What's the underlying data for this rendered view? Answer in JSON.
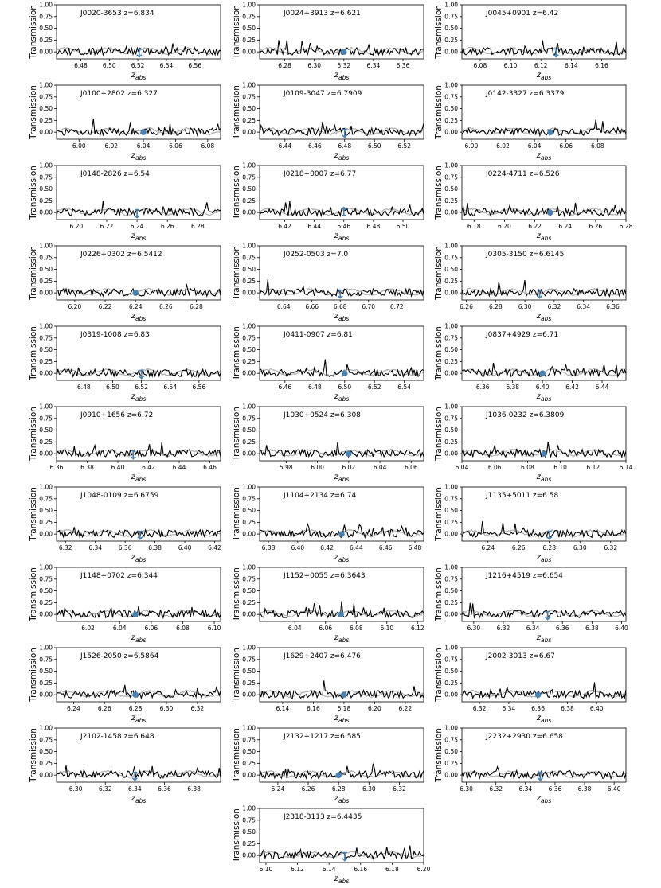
{
  "figure": {
    "ylabel": "Transmission",
    "xlabel_main": "z",
    "xlabel_sub": "abs",
    "yticks": [
      "0.00",
      "0.25",
      "0.50",
      "0.75",
      "1.00"
    ],
    "colors": {
      "flux": "#000000",
      "model": "#b0b0b0",
      "marker": "#4682b4"
    }
  },
  "chart_data": [
    {
      "type": "line",
      "title": "J0020-3653 z=6.834",
      "xlim": [
        6.463,
        6.578
      ],
      "ylim": [
        -0.15,
        1.0
      ],
      "xticks": [
        "6.48",
        "6.50",
        "6.52",
        "6.54",
        "6.56"
      ],
      "marker": {
        "x": 6.521,
        "kind": "upper-limit"
      }
    },
    {
      "type": "line",
      "title": "J0024+3913 z=6.621",
      "xlim": [
        6.263,
        6.374
      ],
      "ylim": [
        -0.15,
        1.0
      ],
      "xticks": [
        "6.28",
        "6.30",
        "6.32",
        "6.34",
        "6.36"
      ],
      "marker": {
        "x": 6.32,
        "kind": "point"
      }
    },
    {
      "type": "line",
      "title": "J0045+0901 z=6.42",
      "xlim": [
        6.068,
        6.176
      ],
      "ylim": [
        -0.15,
        1.0
      ],
      "xticks": [
        "6.08",
        "6.10",
        "6.12",
        "6.14",
        "6.16"
      ],
      "marker": {
        "x": 6.13,
        "kind": "upper-limit"
      }
    },
    {
      "type": "line",
      "title": "J0100+2802 z=6.327",
      "xlim": [
        5.986,
        6.088
      ],
      "ylim": [
        -0.15,
        1.0
      ],
      "xticks": [
        "6.00",
        "6.02",
        "6.04",
        "6.06",
        "6.08"
      ],
      "marker": {
        "x": 6.04,
        "kind": "point"
      }
    },
    {
      "type": "line",
      "title": "J0109-3047 z=6.7909",
      "xlim": [
        6.423,
        6.533
      ],
      "ylim": [
        -0.15,
        1.0
      ],
      "xticks": [
        "6.44",
        "6.46",
        "6.48",
        "6.50",
        "6.52"
      ],
      "marker": {
        "x": 6.48,
        "kind": "upper-limit"
      }
    },
    {
      "type": "line",
      "title": "J0142-3327 z=6.3379",
      "xlim": [
        5.994,
        6.098
      ],
      "ylim": [
        -0.15,
        1.0
      ],
      "xticks": [
        "6.00",
        "6.02",
        "6.04",
        "6.06",
        "6.08"
      ],
      "marker": {
        "x": 6.05,
        "kind": "point"
      }
    },
    {
      "type": "line",
      "title": "J0148-2826 z=6.54",
      "xlim": [
        6.187,
        6.295
      ],
      "ylim": [
        -0.15,
        1.0
      ],
      "xticks": [
        "6.20",
        "6.22",
        "6.24",
        "6.26",
        "6.28"
      ],
      "marker": {
        "x": 6.24,
        "kind": "upper-limit"
      }
    },
    {
      "type": "line",
      "title": "J0218+0007 z=6.77",
      "xlim": [
        6.403,
        6.514
      ],
      "ylim": [
        -0.15,
        1.0
      ],
      "xticks": [
        "6.42",
        "6.44",
        "6.46",
        "6.48",
        "6.50"
      ],
      "marker": {
        "x": 6.46,
        "kind": "lower-limit"
      }
    },
    {
      "type": "line",
      "title": "J0224-4711 z=6.526",
      "xlim": [
        6.172,
        6.28
      ],
      "ylim": [
        -0.15,
        1.0
      ],
      "xticks": [
        "6.18",
        "6.20",
        "6.22",
        "6.24",
        "6.26",
        "6.28"
      ],
      "marker": {
        "x": 6.23,
        "kind": "point"
      }
    },
    {
      "type": "line",
      "title": "J0226+0302 z=6.5412",
      "xlim": [
        6.188,
        6.296
      ],
      "ylim": [
        -0.15,
        1.0
      ],
      "xticks": [
        "6.20",
        "6.22",
        "6.24",
        "6.26",
        "6.28"
      ],
      "marker": {
        "x": 6.24,
        "kind": "point"
      }
    },
    {
      "type": "line",
      "title": "J0252-0503 z=7.0",
      "xlim": [
        6.623,
        6.739
      ],
      "ylim": [
        -0.15,
        1.0
      ],
      "xticks": [
        "6.64",
        "6.66",
        "6.68",
        "6.70",
        "6.72"
      ],
      "marker": {
        "x": 6.68,
        "kind": "upper-limit"
      }
    },
    {
      "type": "line",
      "title": "J0305-3150 z=6.6145",
      "xlim": [
        6.257,
        6.369
      ],
      "ylim": [
        -0.15,
        1.0
      ],
      "xticks": [
        "6.26",
        "6.28",
        "6.30",
        "6.32",
        "6.34",
        "6.36"
      ],
      "marker": {
        "x": 6.31,
        "kind": "upper-limit"
      }
    },
    {
      "type": "line",
      "title": "J0319-1008 z=6.83",
      "xlim": [
        6.461,
        6.575
      ],
      "ylim": [
        -0.15,
        1.0
      ],
      "xticks": [
        "6.48",
        "6.50",
        "6.52",
        "6.54",
        "6.56"
      ],
      "marker": {
        "x": 6.52,
        "kind": "upper-limit"
      }
    },
    {
      "type": "line",
      "title": "J0411-0907 z=6.81",
      "xlim": [
        6.443,
        6.553
      ],
      "ylim": [
        -0.15,
        1.0
      ],
      "xticks": [
        "6.46",
        "6.48",
        "6.50",
        "6.52",
        "6.54"
      ],
      "marker": {
        "x": 6.5,
        "kind": "point"
      }
    },
    {
      "type": "line",
      "title": "J0837+4929 z=6.71",
      "xlim": [
        6.346,
        6.456
      ],
      "ylim": [
        -0.15,
        1.0
      ],
      "xticks": [
        "6.36",
        "6.38",
        "6.40",
        "6.42",
        "6.44"
      ],
      "marker": {
        "x": 6.4,
        "kind": "point"
      }
    },
    {
      "type": "line",
      "title": "J0910+1656 z=6.72",
      "xlim": [
        6.36,
        6.467
      ],
      "ylim": [
        -0.15,
        1.0
      ],
      "xticks": [
        "6.36",
        "6.38",
        "6.40",
        "6.42",
        "6.44",
        "6.46"
      ],
      "marker": {
        "x": 6.41,
        "kind": "upper-limit"
      }
    },
    {
      "type": "line",
      "title": "J1030+0524 z=6.308",
      "xlim": [
        5.963,
        6.068
      ],
      "ylim": [
        -0.15,
        1.0
      ],
      "xticks": [
        "5.98",
        "6.00",
        "6.02",
        "6.04",
        "6.06"
      ],
      "marker": {
        "x": 6.02,
        "kind": "point"
      }
    },
    {
      "type": "line",
      "title": "J1036-0232 z=6.3809",
      "xlim": [
        6.04,
        6.14
      ],
      "ylim": [
        -0.15,
        1.0
      ],
      "xticks": [
        "6.04",
        "6.06",
        "6.08",
        "6.10",
        "6.12",
        "6.14"
      ],
      "marker": {
        "x": 6.09,
        "kind": "point"
      }
    },
    {
      "type": "line",
      "title": "J1048-0109 z=6.6759",
      "xlim": [
        6.314,
        6.424
      ],
      "ylim": [
        -0.15,
        1.0
      ],
      "xticks": [
        "6.32",
        "6.34",
        "6.36",
        "6.38",
        "6.40",
        "6.42"
      ],
      "marker": {
        "x": 6.37,
        "kind": "upper-limit"
      }
    },
    {
      "type": "line",
      "title": "J1104+2134 z=6.74",
      "xlim": [
        6.374,
        6.486
      ],
      "ylim": [
        -0.15,
        1.0
      ],
      "xticks": [
        "6.38",
        "6.40",
        "6.42",
        "6.44",
        "6.46",
        "6.48"
      ],
      "marker": {
        "x": 6.43,
        "kind": "point"
      }
    },
    {
      "type": "line",
      "title": "J1135+5011 z=6.58",
      "xlim": [
        6.223,
        6.33
      ],
      "ylim": [
        -0.15,
        1.0
      ],
      "xticks": [
        "6.24",
        "6.26",
        "6.28",
        "6.30",
        "6.32"
      ],
      "marker": {
        "x": 6.28,
        "kind": "upper-limit"
      }
    },
    {
      "type": "line",
      "title": "J1148+0702 z=6.344",
      "xlim": [
        6.0,
        6.104
      ],
      "ylim": [
        -0.15,
        1.0
      ],
      "xticks": [
        "6.02",
        "6.04",
        "6.06",
        "6.08",
        "6.10"
      ],
      "marker": {
        "x": 6.05,
        "kind": "point"
      }
    },
    {
      "type": "line",
      "title": "J1152+0055 z=6.3643",
      "xlim": [
        6.017,
        6.124
      ],
      "ylim": [
        -0.15,
        1.0
      ],
      "xticks": [
        "6.04",
        "6.06",
        "6.08",
        "6.10",
        "6.12"
      ],
      "marker": {
        "x": 6.07,
        "kind": "point"
      }
    },
    {
      "type": "line",
      "title": "J1216+4519 z=6.654",
      "xlim": [
        6.292,
        6.403
      ],
      "ylim": [
        -0.15,
        1.0
      ],
      "xticks": [
        "6.30",
        "6.32",
        "6.34",
        "6.36",
        "6.38",
        "6.40"
      ],
      "marker": {
        "x": 6.35,
        "kind": "upper-limit"
      }
    },
    {
      "type": "line",
      "title": "J1526-2050 z=6.5864",
      "xlim": [
        6.229,
        6.335
      ],
      "ylim": [
        -0.15,
        1.0
      ],
      "xticks": [
        "6.24",
        "6.26",
        "6.28",
        "6.30",
        "6.32"
      ],
      "marker": {
        "x": 6.28,
        "kind": "point"
      }
    },
    {
      "type": "line",
      "title": "J1629+2407 z=6.476",
      "xlim": [
        6.125,
        6.232
      ],
      "ylim": [
        -0.15,
        1.0
      ],
      "xticks": [
        "6.14",
        "6.16",
        "6.18",
        "6.20",
        "6.22"
      ],
      "marker": {
        "x": 6.18,
        "kind": "point"
      }
    },
    {
      "type": "line",
      "title": "J2002-3013 z=6.67",
      "xlim": [
        6.308,
        6.42
      ],
      "ylim": [
        -0.15,
        1.0
      ],
      "xticks": [
        "6.32",
        "6.34",
        "6.36",
        "6.38",
        "6.40"
      ],
      "marker": {
        "x": 6.36,
        "kind": "point"
      }
    },
    {
      "type": "line",
      "title": "J2102-1458 z=6.648",
      "xlim": [
        6.287,
        6.398
      ],
      "ylim": [
        -0.15,
        1.0
      ],
      "xticks": [
        "6.30",
        "6.32",
        "6.34",
        "6.36",
        "6.38"
      ],
      "marker": {
        "x": 6.34,
        "kind": "upper-limit"
      }
    },
    {
      "type": "line",
      "title": "J2132+1217 z=6.585",
      "xlim": [
        6.228,
        6.336
      ],
      "ylim": [
        -0.15,
        1.0
      ],
      "xticks": [
        "6.24",
        "6.26",
        "6.28",
        "6.30",
        "6.32"
      ],
      "marker": {
        "x": 6.28,
        "kind": "point"
      }
    },
    {
      "type": "line",
      "title": "J2232+2930 z=6.658",
      "xlim": [
        6.297,
        6.408
      ],
      "ylim": [
        -0.15,
        1.0
      ],
      "xticks": [
        "6.30",
        "6.32",
        "6.34",
        "6.36",
        "6.38",
        "6.40"
      ],
      "marker": {
        "x": 6.35,
        "kind": "upper-limit"
      }
    },
    {
      "type": "line",
      "title": "J2318-3113 z=6.4435",
      "xlim": [
        6.096,
        6.2
      ],
      "ylim": [
        -0.15,
        1.0
      ],
      "xticks": [
        "6.10",
        "6.12",
        "6.14",
        "6.16",
        "6.18",
        "6.20"
      ],
      "marker": {
        "x": 6.15,
        "kind": "upper-limit"
      }
    }
  ]
}
